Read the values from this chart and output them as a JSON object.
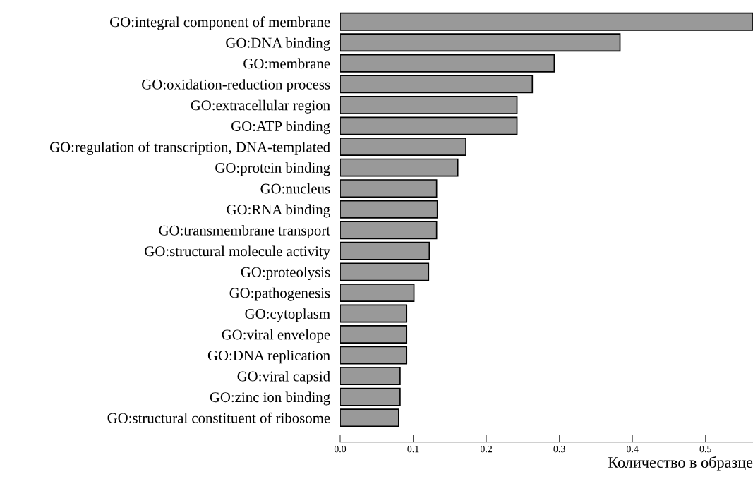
{
  "chart_data": {
    "type": "bar",
    "orientation": "horizontal",
    "xlabel": "Количество в образце",
    "categories": [
      "GO:integral component of membrane",
      "GO:DNA binding",
      "GO:membrane",
      "GO:oxidation-reduction process",
      "GO:extracellular region",
      "GO:ATP binding",
      "GO:regulation of transcription, DNA-templated",
      "GO:protein binding",
      "GO:nucleus",
      "GO:RNA binding",
      "GO:transmembrane transport",
      "GO:structural molecule activity",
      "GO:proteolysis",
      "GO:pathogenesis",
      "GO:cytoplasm",
      "GO:viral envelope",
      "GO:DNA replication",
      "GO:viral capsid",
      "GO:zinc ion binding",
      "GO:structural constituent of ribosome"
    ],
    "values": [
      0.565,
      0.383,
      0.293,
      0.263,
      0.242,
      0.242,
      0.172,
      0.161,
      0.132,
      0.133,
      0.132,
      0.122,
      0.121,
      0.101,
      0.091,
      0.091,
      0.091,
      0.082,
      0.082,
      0.08
    ],
    "color": "#999999",
    "xlim": [
      0,
      0.565
    ],
    "xticks": [
      {
        "value": 0,
        "label": "0.0"
      },
      0.1,
      0.2,
      0.3,
      0.4,
      0.5
    ],
    "grid": false,
    "legend": false
  }
}
